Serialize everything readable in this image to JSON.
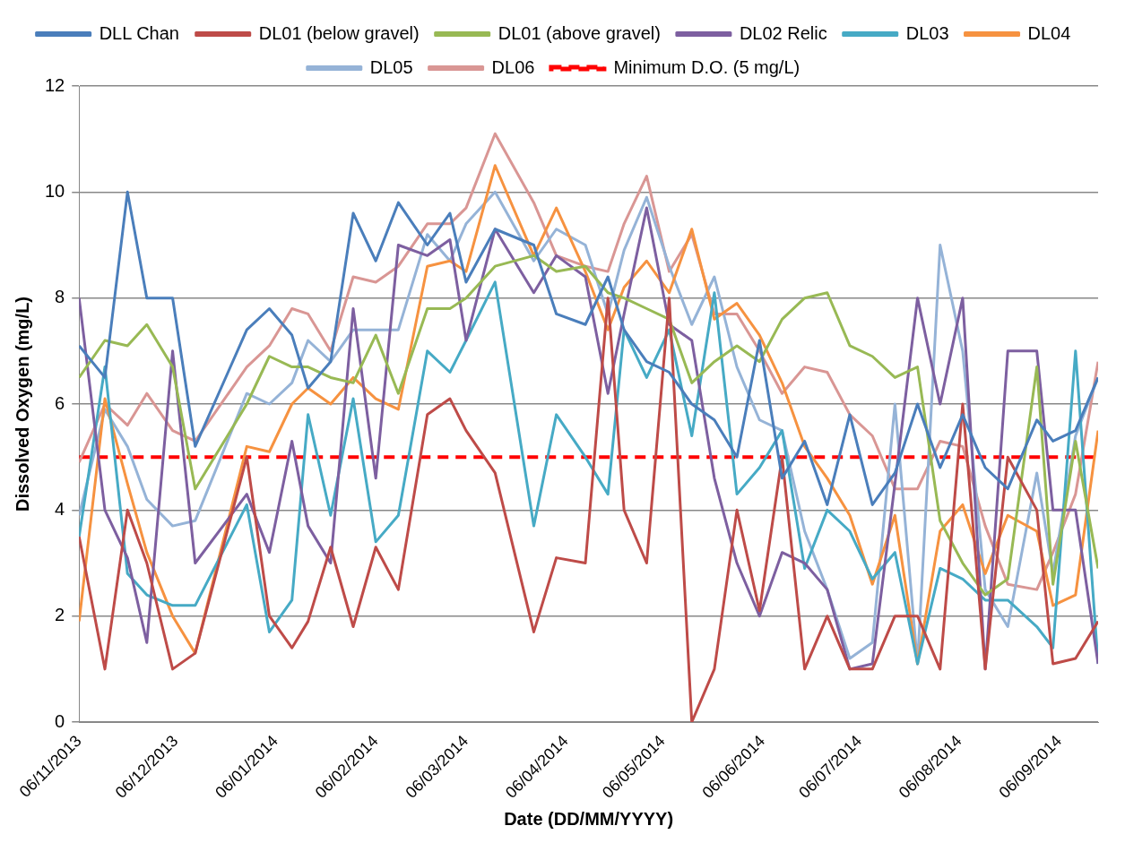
{
  "chart_data": {
    "type": "line",
    "xlabel": "Date (DD/MM/YYYY)",
    "ylabel": "Dissolved Oxygen (mg/L)",
    "x": [
      "2013-11-06",
      "2013-11-14",
      "2013-11-21",
      "2013-11-27",
      "2013-12-05",
      "2013-12-12",
      "2013-12-28",
      "2014-01-04",
      "2014-01-11",
      "2014-01-16",
      "2014-01-23",
      "2014-01-30",
      "2014-02-06",
      "2014-02-13",
      "2014-02-22",
      "2014-03-01",
      "2014-03-06",
      "2014-03-15",
      "2014-03-27",
      "2014-04-03",
      "2014-04-12",
      "2014-04-19",
      "2014-04-24",
      "2014-05-01",
      "2014-05-08",
      "2014-05-15",
      "2014-05-22",
      "2014-05-29",
      "2014-06-05",
      "2014-06-12",
      "2014-06-19",
      "2014-06-26",
      "2014-07-03",
      "2014-07-10",
      "2014-07-17",
      "2014-07-24",
      "2014-07-31",
      "2014-08-07",
      "2014-08-14",
      "2014-08-21",
      "2014-08-30",
      "2014-09-04",
      "2014-09-11",
      "2014-09-18"
    ],
    "series": [
      {
        "name": "DLL Chan",
        "color": "#4a7ebb",
        "values": [
          7.1,
          6.5,
          10,
          8,
          8,
          5.2,
          7.4,
          7.8,
          7.3,
          6.3,
          6.8,
          9.6,
          8.7,
          9.8,
          9.0,
          9.6,
          8.3,
          9.3,
          9.0,
          7.7,
          7.5,
          8.4,
          7.4,
          6.8,
          6.6,
          6.0,
          5.7,
          5.0,
          7.2,
          4.6,
          5.3,
          4.1,
          5.8,
          4.1,
          4.7,
          6.0,
          4.8,
          5.8,
          4.8,
          4.4,
          5.7,
          5.3,
          5.5,
          6.5
        ]
      },
      {
        "name": "DL01 (below gravel)",
        "color": "#be4b48",
        "values": [
          3.5,
          1.0,
          4.0,
          3.0,
          1.0,
          1.3,
          5.0,
          2.0,
          1.4,
          1.9,
          3.3,
          1.8,
          3.3,
          2.5,
          5.8,
          6.1,
          5.5,
          4.7,
          1.7,
          3.1,
          3.0,
          8.0,
          4.0,
          3.0,
          8.0,
          0,
          1.0,
          4.0,
          2.1,
          5.0,
          1.0,
          2.0,
          1.0,
          1.0,
          2.0,
          2.0,
          1.0,
          6.0,
          1.0,
          5.0,
          4.0,
          1.1,
          1.2,
          1.9
        ]
      },
      {
        "name": "DL01 (above gravel)",
        "color": "#98b954",
        "values": [
          6.5,
          7.2,
          7.1,
          7.5,
          6.7,
          4.4,
          6.0,
          6.9,
          6.7,
          6.7,
          6.5,
          6.4,
          7.3,
          6.2,
          7.8,
          7.8,
          8.0,
          8.6,
          8.8,
          8.5,
          8.6,
          8.1,
          8.0,
          7.8,
          7.6,
          6.4,
          6.8,
          7.1,
          6.8,
          7.6,
          8.0,
          8.1,
          7.1,
          6.9,
          6.5,
          6.7,
          3.8,
          3.0,
          2.4,
          2.7,
          6.7,
          2.6,
          5.3,
          2.9
        ]
      },
      {
        "name": "DL02 Relic",
        "color": "#7d5fa0",
        "values": [
          8.0,
          4.0,
          3.1,
          1.5,
          7.0,
          3.0,
          4.3,
          3.2,
          5.3,
          3.7,
          3.0,
          7.8,
          4.6,
          9.0,
          8.8,
          9.1,
          7.2,
          9.3,
          8.1,
          8.8,
          8.4,
          6.2,
          7.7,
          9.7,
          7.5,
          7.2,
          4.6,
          3.0,
          2.0,
          3.2,
          3.0,
          2.5,
          1.0,
          1.1,
          4.5,
          8.0,
          6.0,
          8.0,
          1.0,
          7.0,
          7.0,
          4.0,
          4.0,
          1.1
        ]
      },
      {
        "name": "DL03",
        "color": "#46aac5",
        "values": [
          3.5,
          6.7,
          2.8,
          2.4,
          2.2,
          2.2,
          4.1,
          1.7,
          2.3,
          5.8,
          3.9,
          6.1,
          3.4,
          3.9,
          7.0,
          6.6,
          7.2,
          8.3,
          3.7,
          5.8,
          5.0,
          4.3,
          7.4,
          6.5,
          7.4,
          5.4,
          8.1,
          4.3,
          4.8,
          5.5,
          2.9,
          4.0,
          3.6,
          2.7,
          3.2,
          1.1,
          2.9,
          2.7,
          2.3,
          2.3,
          1.8,
          1.4,
          7.0,
          1.1
        ]
      },
      {
        "name": "DL04",
        "color": "#f69240",
        "values": [
          1.9,
          6.1,
          4.5,
          3.2,
          2.0,
          1.3,
          5.2,
          5.1,
          6.0,
          6.3,
          6.0,
          6.5,
          6.1,
          5.9,
          8.6,
          8.7,
          8.5,
          10.5,
          8.8,
          9.7,
          8.5,
          7.4,
          8.2,
          8.7,
          8.1,
          9.3,
          7.6,
          7.9,
          7.3,
          6.4,
          5.2,
          4.6,
          3.9,
          2.6,
          3.9,
          1.1,
          3.6,
          4.1,
          2.8,
          3.9,
          3.6,
          2.2,
          2.4,
          5.5
        ]
      },
      {
        "name": "DL05",
        "color": "#95b3d7",
        "values": [
          3.9,
          5.9,
          5.2,
          4.2,
          3.7,
          3.8,
          6.2,
          6.0,
          6.4,
          7.2,
          6.8,
          7.4,
          7.4,
          7.4,
          9.2,
          8.7,
          9.4,
          10.0,
          8.7,
          9.3,
          9.0,
          7.7,
          8.9,
          9.9,
          8.6,
          7.5,
          8.4,
          6.7,
          5.7,
          5.5,
          3.6,
          2.5,
          1.2,
          1.5,
          6.0,
          1.1,
          9.0,
          7.0,
          2.5,
          1.8,
          4.7,
          2.8,
          5.4,
          6.5
        ]
      },
      {
        "name": "DL06",
        "color": "#d99694",
        "values": [
          4.9,
          6.0,
          5.6,
          6.2,
          5.5,
          5.3,
          6.7,
          7.1,
          7.8,
          7.7,
          7.0,
          8.4,
          8.3,
          8.6,
          9.4,
          9.4,
          9.7,
          11.1,
          9.8,
          8.8,
          8.6,
          8.5,
          9.4,
          10.3,
          8.5,
          9.2,
          7.7,
          7.7,
          7.0,
          6.2,
          6.7,
          6.6,
          5.8,
          5.4,
          4.4,
          4.4,
          5.3,
          5.2,
          3.7,
          2.6,
          2.5,
          3.2,
          4.3,
          6.8
        ]
      }
    ],
    "ref_lines": [
      {
        "axis": "y",
        "value": 5,
        "label": "Minimum D.O. (5 mg/L)",
        "color": "#ff0000",
        "line_style": "dashed"
      }
    ],
    "xlim": [
      "2013-11-06",
      "2014-09-18"
    ],
    "xticks": [
      {
        "value": "2013-11-06",
        "label": "06/11/2013"
      },
      {
        "value": "2013-12-06",
        "label": "06/12/2013"
      },
      {
        "value": "2014-01-06",
        "label": "06/01/2014"
      },
      {
        "value": "2014-02-06",
        "label": "06/02/2014"
      },
      {
        "value": "2014-03-06",
        "label": "06/03/2014"
      },
      {
        "value": "2014-04-06",
        "label": "06/04/2014"
      },
      {
        "value": "2014-05-06",
        "label": "06/05/2014"
      },
      {
        "value": "2014-06-06",
        "label": "06/06/2014"
      },
      {
        "value": "2014-07-06",
        "label": "06/07/2014"
      },
      {
        "value": "2014-08-06",
        "label": "06/08/2014"
      },
      {
        "value": "2014-09-06",
        "label": "06/09/2014"
      }
    ],
    "ylim": [
      0,
      12
    ],
    "yticks": [
      0,
      2,
      4,
      6,
      8,
      10,
      12
    ],
    "grid": "y",
    "legend": "top",
    "marker": "none",
    "line_style": "solid"
  }
}
